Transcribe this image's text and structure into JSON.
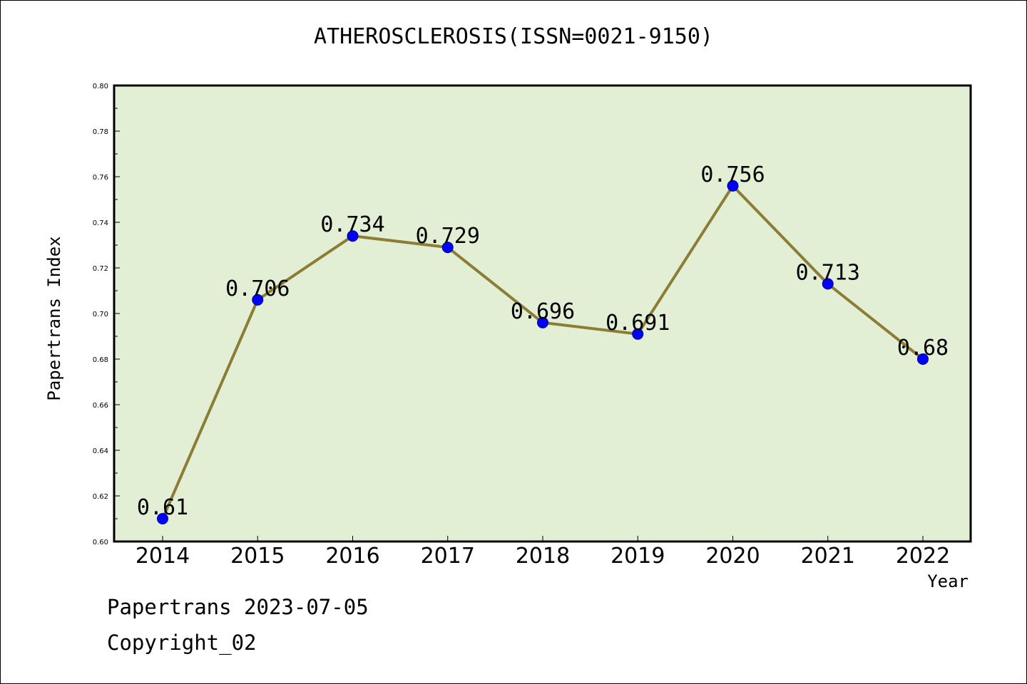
{
  "chart_data": {
    "type": "line",
    "title": "ATHEROSCLEROSIS(ISSN=0021-9150)",
    "xlabel": "Year",
    "ylabel": "Papertrans Index",
    "categories": [
      "2014",
      "2015",
      "2016",
      "2017",
      "2018",
      "2019",
      "2020",
      "2021",
      "2022"
    ],
    "series": [
      {
        "values": [
          0.61,
          0.706,
          0.734,
          0.729,
          0.696,
          0.691,
          0.756,
          0.713,
          0.68
        ]
      }
    ],
    "data_labels": [
      "0.61",
      "0.706",
      "0.734",
      "0.729",
      "0.696",
      "0.691",
      "0.756",
      "0.713",
      "0.68"
    ],
    "ylim": [
      0.6,
      0.8
    ],
    "yticks": [
      "0.60",
      "0.62",
      "0.64",
      "0.66",
      "0.68",
      "0.70",
      "0.72",
      "0.74",
      "0.76",
      "0.78",
      "0.80"
    ],
    "grid": false,
    "colors": {
      "plot_background": "#e2efd5",
      "line": "#8b7d35",
      "marker": "#0000ff"
    }
  },
  "footer": {
    "line1": "Papertrans 2023-07-05",
    "line2": "Copyright_02"
  }
}
